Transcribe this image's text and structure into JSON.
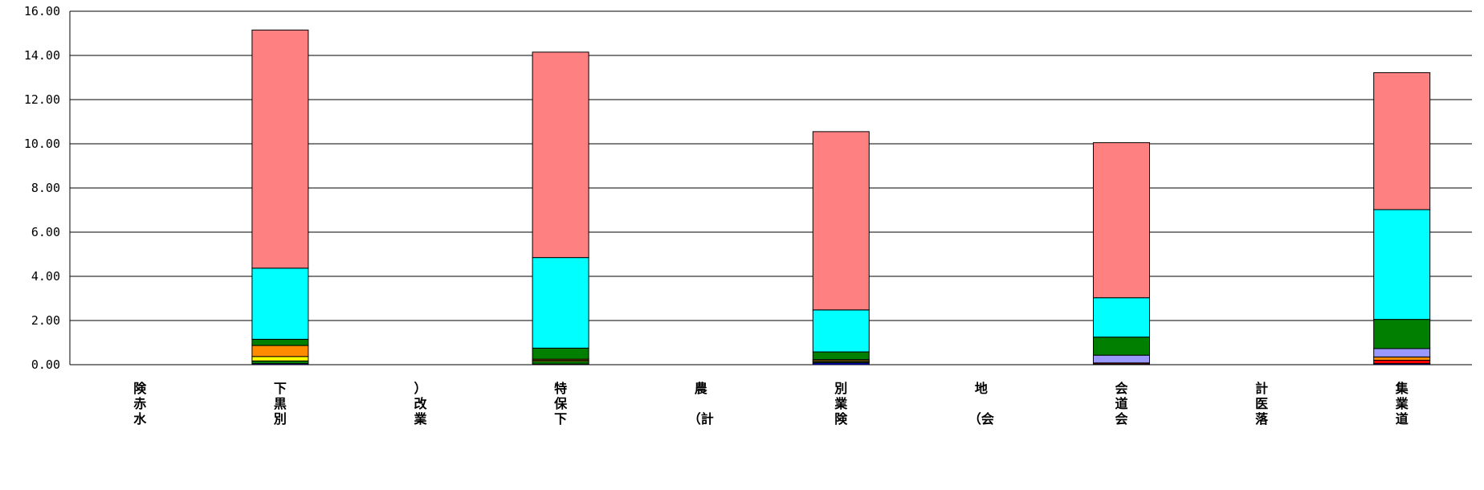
{
  "chart_data": {
    "type": "bar",
    "stacked": true,
    "title": "",
    "xlabel": "",
    "ylabel": "",
    "ylim": [
      0,
      16
    ],
    "y_ticks": [
      "0.00",
      "2.00",
      "4.00",
      "6.00",
      "8.00",
      "10.00",
      "12.00",
      "14.00",
      "16.00"
    ],
    "grid": true,
    "legend": "none",
    "categories": [
      [
        "険",
        "赤",
        "水"
      ],
      [
        "下",
        "黒",
        "別"
      ],
      [
        "）",
        "改",
        "業"
      ],
      [
        "特",
        "保",
        "下"
      ],
      [
        "農",
        "",
        "（計"
      ],
      [
        "別",
        "業",
        "険"
      ],
      [
        "地",
        "",
        "（会"
      ],
      [
        "会",
        "道",
        "会"
      ],
      [
        "計",
        "医",
        "落"
      ],
      [
        "集",
        "業",
        "道"
      ]
    ],
    "series": [
      {
        "color": "#0000FF",
        "values": [
          0,
          0.05,
          0,
          0.03,
          0,
          0.08,
          0,
          0.03,
          0,
          0.05
        ]
      },
      {
        "color": "#008000",
        "values": [
          0,
          0.12,
          0,
          0.12,
          0,
          0.05,
          0,
          0.0,
          0,
          0.0
        ]
      },
      {
        "color": "#FF0000",
        "values": [
          0,
          0.0,
          0,
          0.0,
          0,
          0.0,
          0,
          0.05,
          0,
          0.15
        ]
      },
      {
        "color": "#FFFF00",
        "values": [
          0,
          0.2,
          0,
          0.05,
          0,
          0.05,
          0,
          0.0,
          0,
          0.0
        ]
      },
      {
        "color": "#FF8C00",
        "values": [
          0,
          0.5,
          0,
          0.05,
          0,
          0.05,
          0,
          0.0,
          0,
          0.15
        ]
      },
      {
        "color": "#9999FF",
        "values": [
          0,
          0.0,
          0,
          0.0,
          0,
          0.0,
          0,
          0.35,
          0,
          0.38
        ]
      },
      {
        "color": "#007F00",
        "values": [
          0,
          0.28,
          0,
          0.5,
          0,
          0.35,
          0,
          0.82,
          0,
          1.32
        ]
      },
      {
        "color": "#00FFFF",
        "values": [
          0,
          3.22,
          0,
          4.1,
          0,
          1.9,
          0,
          1.78,
          0,
          4.97
        ]
      },
      {
        "color": "#FF8080",
        "values": [
          0,
          10.78,
          0,
          9.3,
          0,
          8.07,
          0,
          7.02,
          0,
          6.2
        ]
      }
    ]
  }
}
